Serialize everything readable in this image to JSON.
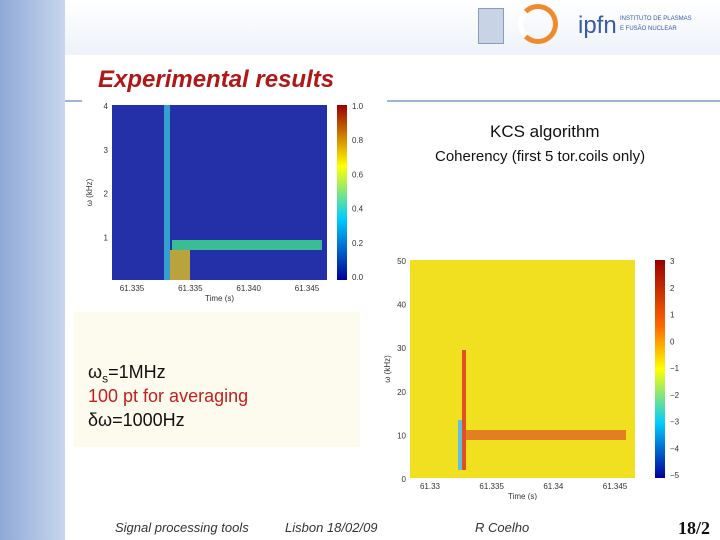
{
  "header": {
    "logo_text": "ipfn",
    "institute": [
      "INSTITUTO DE PLASMAS",
      "E FUSÃO NUCLEAR"
    ]
  },
  "title": "Experimental results",
  "notes": [
    "KCS algorithm",
    "Coherency (first 5 tor.coils only)"
  ],
  "params": {
    "omega": {
      "symbol": "ω",
      "sub": "s",
      "rest": "=1MHz"
    },
    "averaging": "100 pt for averaging",
    "resolution": "δω=1000Hz"
  },
  "figures": [
    {
      "xlabel": "Time (s)",
      "ylabel": "ω (kHz)",
      "xticks": [
        "61.335",
        "61.335",
        "61.340",
        "61.345"
      ],
      "yticks": [
        "4",
        "3",
        "2",
        "1"
      ],
      "cbar": [
        "1.0",
        "0.8",
        "0.6",
        "0.4",
        "0.2",
        "0.0"
      ]
    },
    {
      "xlabel": "Time (s)",
      "ylabel": "ω (kHz)",
      "xticks": [
        "61.33",
        "61.335",
        "61.34",
        "61.345"
      ],
      "yticks": [
        "50",
        "40",
        "30",
        "20",
        "10",
        "0"
      ],
      "cbar": [
        "3",
        "2",
        "1",
        "0",
        "−1",
        "−2",
        "−3",
        "−4",
        "−5"
      ]
    }
  ],
  "footer": {
    "topic": "Signal processing tools",
    "place": "Lisbon 18/02/09",
    "author": "R Coelho",
    "page": "18/2"
  }
}
